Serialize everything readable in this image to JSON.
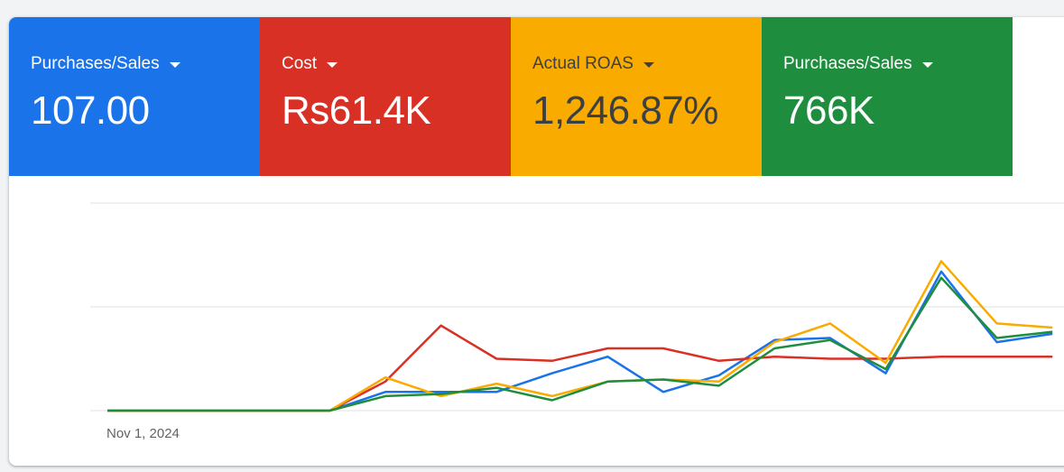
{
  "tiles": [
    {
      "label": "Purchases/Sales",
      "value": "107.00",
      "bg": "#1a73e8",
      "fg": "#ffffff"
    },
    {
      "label": "Cost",
      "value": "Rs61.4K",
      "bg": "#d93025",
      "fg": "#ffffff"
    },
    {
      "label": "Actual ROAS",
      "value": "1,246.87%",
      "bg": "#f9ab00",
      "fg": "#3c4043"
    },
    {
      "label": "Purchases/Sales",
      "value": "766K",
      "bg": "#1e8e3e",
      "fg": "#ffffff"
    }
  ],
  "chart_data": {
    "type": "line",
    "grid": true,
    "legend": "none",
    "x_tick_labels": [
      {
        "index": 0,
        "label": "Nov 1, 2024"
      }
    ],
    "ylim": [
      0,
      1
    ],
    "x": [
      0,
      1,
      2,
      3,
      4,
      5,
      6,
      7,
      8,
      9,
      10,
      11,
      12,
      13,
      14,
      15,
      16,
      17
    ],
    "series": [
      {
        "color": "#1a73e8",
        "values": [
          0,
          0,
          0,
          0,
          0,
          0.09,
          0.09,
          0.09,
          0.18,
          0.26,
          0.09,
          0.17,
          0.34,
          0.35,
          0.18,
          0.67,
          0.33,
          0.37
        ]
      },
      {
        "color": "#d93025",
        "values": [
          0,
          0,
          0,
          0,
          0,
          0.14,
          0.41,
          0.25,
          0.24,
          0.3,
          0.3,
          0.24,
          0.26,
          0.25,
          0.25,
          0.26,
          0.26,
          0.26
        ]
      },
      {
        "color": "#f9ab00",
        "values": [
          0,
          0,
          0,
          0,
          0,
          0.16,
          0.07,
          0.13,
          0.07,
          0.14,
          0.15,
          0.14,
          0.33,
          0.42,
          0.23,
          0.72,
          0.42,
          0.4
        ]
      },
      {
        "color": "#1e8e3e",
        "values": [
          0,
          0,
          0,
          0,
          0,
          0.07,
          0.08,
          0.11,
          0.05,
          0.14,
          0.15,
          0.12,
          0.3,
          0.34,
          0.2,
          0.64,
          0.35,
          0.38
        ]
      }
    ]
  }
}
